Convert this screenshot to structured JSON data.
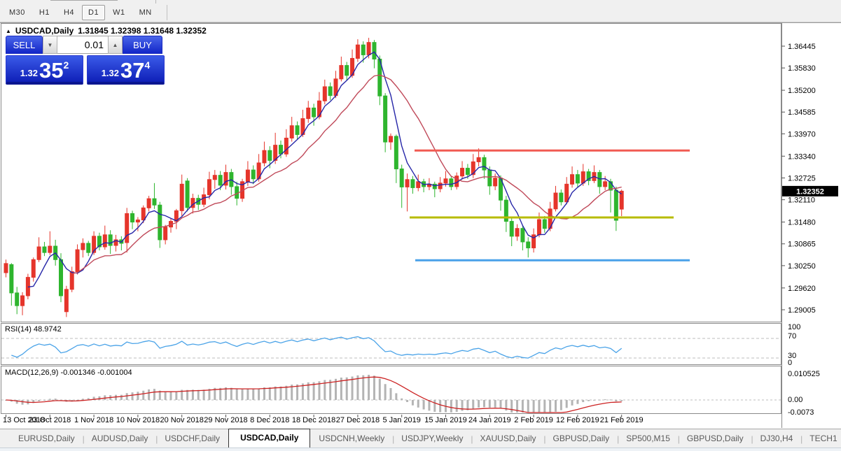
{
  "toolbar": {
    "timeframes": [
      {
        "label": "M30",
        "active": false
      },
      {
        "label": "H1",
        "active": false
      },
      {
        "label": "H4",
        "active": false
      },
      {
        "label": "D1",
        "active": true
      },
      {
        "label": "W1",
        "active": false
      },
      {
        "label": "MN",
        "active": false
      }
    ]
  },
  "chart_header": {
    "symbol": "USDCAD,Daily",
    "ohlc_text": "1.31845 1.32398 1.31648 1.32352"
  },
  "trade_panel": {
    "sell_label": "SELL",
    "buy_label": "BUY",
    "lot": "0.01",
    "sell_price": {
      "prefix": "1.32",
      "big": "35",
      "sup": "2"
    },
    "buy_price": {
      "prefix": "1.32",
      "big": "37",
      "sup": "4"
    }
  },
  "price_axis": {
    "ticks": [
      "1.36445",
      "1.35830",
      "1.35200",
      "1.34585",
      "1.33970",
      "1.33340",
      "1.32725",
      "1.32110",
      "1.31480",
      "1.30865",
      "1.30250",
      "1.29620",
      "1.29005"
    ],
    "current": "1.32352"
  },
  "rsi": {
    "title": "RSI(14) 48.9742",
    "levels": [
      "100",
      "70",
      "30",
      "0"
    ]
  },
  "macd": {
    "title": "MACD(12,26,9) -0.001346 -0.001004",
    "scale": [
      "0.010525",
      "0.00",
      "-0.0073"
    ]
  },
  "tabs": {
    "items": [
      "EURUSD,Daily",
      "AUDUSD,Daily",
      "USDCHF,Daily",
      "USDCAD,Daily",
      "USDCNH,Weekly",
      "USDJPY,Weekly",
      "XAUUSD,Daily",
      "GBPUSD,Daily",
      "SP500,M15",
      "GBPUSD,Daily",
      "DJ30,H4",
      "TECH1"
    ],
    "active_index": 3,
    "scroll_left": "◂",
    "scroll_right": "▸"
  },
  "chart_data": {
    "type": "candlestick",
    "title": "USDCAD Daily",
    "last_ohlc": {
      "open": 1.31845,
      "high": 1.32398,
      "low": 1.31648,
      "close": 1.32352
    },
    "date_labels": [
      "13 Oct 2018",
      "23 Oct 2018",
      "1 Nov 2018",
      "10 Nov 2018",
      "20 Nov 2018",
      "29 Nov 2018",
      "8 Dec 2018",
      "18 Dec 2018",
      "27 Dec 2018",
      "5 Jan 2019",
      "15 Jan 2019",
      "24 Jan 2019",
      "2 Feb 2019",
      "12 Feb 2019",
      "21 Feb 2019"
    ],
    "y_ticks": [
      1.36445,
      1.3583,
      1.352,
      1.34585,
      1.3397,
      1.3334,
      1.32725,
      1.3211,
      1.3148,
      1.30865,
      1.3025,
      1.2962,
      1.29005
    ],
    "ylim": [
      1.2869,
      1.371
    ],
    "hlines": [
      {
        "name": "resistance-line",
        "price": 1.335,
        "color": "#f15b52",
        "x1": 592,
        "x2": 985
      },
      {
        "name": "mid-support-line",
        "price": 1.3161,
        "color": "#b7bb00",
        "x1": 585,
        "x2": 962
      },
      {
        "name": "low-support-line",
        "price": 1.304,
        "color": "#49a1e9",
        "x1": 593,
        "x2": 985
      }
    ],
    "ma": [
      {
        "name": "fast-ma",
        "period": 5,
        "color": "#2626a8"
      },
      {
        "name": "slow-ma",
        "period": 13,
        "color": "#c04a5a"
      }
    ],
    "colors": {
      "up": "#e5352b",
      "down": "#2eb52e",
      "rsi_line": "#4aa3e8",
      "macd_bar": "#b4b4b4",
      "macd_signal": "#cc2222",
      "level_dash": "#bdbdbd"
    },
    "rsi_period": 14,
    "macd_params": [
      12,
      26,
      9
    ],
    "candles": [
      [
        1.3005,
        1.3042,
        1.2992,
        1.3031
      ],
      [
        1.3028,
        1.3032,
        1.2912,
        1.2948
      ],
      [
        1.2948,
        1.2965,
        1.2888,
        1.2912
      ],
      [
        1.2912,
        1.295,
        1.2885,
        1.294
      ],
      [
        1.294,
        1.3002,
        1.293,
        1.2992
      ],
      [
        1.2992,
        1.3048,
        1.298,
        1.3042
      ],
      [
        1.3042,
        1.3105,
        1.3035,
        1.3078
      ],
      [
        1.3078,
        1.3092,
        1.3052,
        1.3062
      ],
      [
        1.3062,
        1.3122,
        1.3055,
        1.308
      ],
      [
        1.308,
        1.3098,
        1.3025,
        1.3042
      ],
      [
        1.3042,
        1.306,
        1.2922,
        1.294
      ],
      [
        1.2895,
        1.2968,
        1.288,
        1.2958
      ],
      [
        1.2958,
        1.3022,
        1.295,
        1.3008
      ],
      [
        1.3008,
        1.3085,
        1.3,
        1.307
      ],
      [
        1.307,
        1.3102,
        1.3048,
        1.3088
      ],
      [
        1.3088,
        1.3095,
        1.3052,
        1.3062
      ],
      [
        1.3062,
        1.3122,
        1.3055,
        1.3108
      ],
      [
        1.3108,
        1.3118,
        1.3068,
        1.3078
      ],
      [
        1.3078,
        1.3138,
        1.307,
        1.3112
      ],
      [
        1.3112,
        1.3125,
        1.3058,
        1.3082
      ],
      [
        1.3082,
        1.3112,
        1.3065,
        1.3098
      ],
      [
        1.3098,
        1.3108,
        1.3068,
        1.3088
      ],
      [
        1.309,
        1.3188,
        1.3062,
        1.3172
      ],
      [
        1.3172,
        1.318,
        1.3128,
        1.3148
      ],
      [
        1.3148,
        1.3162,
        1.3122,
        1.3154
      ],
      [
        1.3154,
        1.3195,
        1.3145,
        1.3188
      ],
      [
        1.3188,
        1.3222,
        1.3178,
        1.3214
      ],
      [
        1.3214,
        1.3258,
        1.3185,
        1.3196
      ],
      [
        1.3196,
        1.3205,
        1.3075,
        1.3098
      ],
      [
        1.3098,
        1.314,
        1.3085,
        1.3134
      ],
      [
        1.3134,
        1.3158,
        1.3118,
        1.315
      ],
      [
        1.315,
        1.3185,
        1.3128,
        1.318
      ],
      [
        1.318,
        1.3282,
        1.3165,
        1.3255
      ],
      [
        1.3264,
        1.3272,
        1.3178,
        1.3189
      ],
      [
        1.3189,
        1.3228,
        1.3172,
        1.3215
      ],
      [
        1.3215,
        1.3225,
        1.3182,
        1.3198
      ],
      [
        1.3198,
        1.3245,
        1.319,
        1.3225
      ],
      [
        1.3225,
        1.329,
        1.3212,
        1.3268
      ],
      [
        1.3268,
        1.3295,
        1.3242,
        1.328
      ],
      [
        1.328,
        1.3292,
        1.3238,
        1.3252
      ],
      [
        1.3252,
        1.331,
        1.324,
        1.3288
      ],
      [
        1.3288,
        1.3298,
        1.3225,
        1.3248
      ],
      [
        1.3248,
        1.3262,
        1.3195,
        1.3215
      ],
      [
        1.3215,
        1.327,
        1.3205,
        1.3262
      ],
      [
        1.3262,
        1.332,
        1.325,
        1.3295
      ],
      [
        1.3295,
        1.3308,
        1.3255,
        1.327
      ],
      [
        1.327,
        1.334,
        1.3262,
        1.3315
      ],
      [
        1.3315,
        1.3375,
        1.3305,
        1.335
      ],
      [
        1.335,
        1.3362,
        1.33,
        1.3322
      ],
      [
        1.3322,
        1.34,
        1.3312,
        1.3365
      ],
      [
        1.3365,
        1.3378,
        1.3328,
        1.334
      ],
      [
        1.334,
        1.341,
        1.3332,
        1.3385
      ],
      [
        1.3385,
        1.3445,
        1.3375,
        1.342
      ],
      [
        1.342,
        1.3432,
        1.3382,
        1.3395
      ],
      [
        1.3395,
        1.3465,
        1.3388,
        1.344
      ],
      [
        1.344,
        1.349,
        1.3428,
        1.347
      ],
      [
        1.347,
        1.3482,
        1.342,
        1.3445
      ],
      [
        1.3445,
        1.3515,
        1.3438,
        1.349
      ],
      [
        1.349,
        1.355,
        1.348,
        1.353
      ],
      [
        1.353,
        1.3542,
        1.3492,
        1.3505
      ],
      [
        1.3505,
        1.3575,
        1.3498,
        1.3552
      ],
      [
        1.3552,
        1.3615,
        1.3545,
        1.359
      ],
      [
        1.359,
        1.36,
        1.3548,
        1.3562
      ],
      [
        1.3562,
        1.3635,
        1.3555,
        1.361
      ],
      [
        1.361,
        1.3664,
        1.36,
        1.3648
      ],
      [
        1.3648,
        1.3658,
        1.3598,
        1.362
      ],
      [
        1.362,
        1.3668,
        1.361,
        1.3655
      ],
      [
        1.3655,
        1.3662,
        1.3582,
        1.3608
      ],
      [
        1.3608,
        1.3618,
        1.3478,
        1.3504
      ],
      [
        1.3504,
        1.3512,
        1.3345,
        1.3374
      ],
      [
        1.3374,
        1.3398,
        1.3352,
        1.339
      ],
      [
        1.339,
        1.3395,
        1.3258,
        1.3298
      ],
      [
        1.3298,
        1.331,
        1.3188,
        1.3247
      ],
      [
        1.3247,
        1.3285,
        1.3178,
        1.3268
      ],
      [
        1.3268,
        1.3278,
        1.3228,
        1.3245
      ],
      [
        1.3245,
        1.3282,
        1.3235,
        1.3262
      ],
      [
        1.3262,
        1.327,
        1.3232,
        1.3248
      ],
      [
        1.3248,
        1.3272,
        1.3238,
        1.3255
      ],
      [
        1.3255,
        1.3262,
        1.3218,
        1.3242
      ],
      [
        1.3242,
        1.3275,
        1.3232,
        1.3258
      ],
      [
        1.3258,
        1.3292,
        1.3248,
        1.327
      ],
      [
        1.327,
        1.3278,
        1.3238,
        1.3248
      ],
      [
        1.3248,
        1.3288,
        1.324,
        1.3278
      ],
      [
        1.3278,
        1.332,
        1.3268,
        1.33
      ],
      [
        1.33,
        1.3312,
        1.327,
        1.3282
      ],
      [
        1.3282,
        1.334,
        1.3272,
        1.3318
      ],
      [
        1.3318,
        1.3356,
        1.3305,
        1.333
      ],
      [
        1.333,
        1.3338,
        1.327,
        1.3295
      ],
      [
        1.3295,
        1.3305,
        1.3225,
        1.325
      ],
      [
        1.325,
        1.3285,
        1.3238,
        1.3272
      ],
      [
        1.3272,
        1.328,
        1.318,
        1.321
      ],
      [
        1.321,
        1.3222,
        1.312,
        1.315
      ],
      [
        1.315,
        1.3162,
        1.308,
        1.3108
      ],
      [
        1.3108,
        1.3142,
        1.3095,
        1.313
      ],
      [
        1.313,
        1.3138,
        1.3068,
        1.3092
      ],
      [
        1.3092,
        1.3105,
        1.3048,
        1.3075
      ],
      [
        1.3075,
        1.313,
        1.3062,
        1.3112
      ],
      [
        1.3112,
        1.3175,
        1.3105,
        1.3155
      ],
      [
        1.3155,
        1.3165,
        1.3118,
        1.313
      ],
      [
        1.313,
        1.3205,
        1.3122,
        1.3185
      ],
      [
        1.3185,
        1.325,
        1.3178,
        1.323
      ],
      [
        1.323,
        1.324,
        1.3195,
        1.3205
      ],
      [
        1.3205,
        1.3275,
        1.3198,
        1.3255
      ],
      [
        1.3255,
        1.3305,
        1.3245,
        1.3282
      ],
      [
        1.3282,
        1.3295,
        1.3245,
        1.3258
      ],
      [
        1.3258,
        1.3312,
        1.325,
        1.329
      ],
      [
        1.329,
        1.3298,
        1.3252,
        1.3265
      ],
      [
        1.3265,
        1.3308,
        1.3258,
        1.3288
      ],
      [
        1.3288,
        1.3295,
        1.3228,
        1.3248
      ],
      [
        1.3248,
        1.3278,
        1.3238,
        1.3262
      ],
      [
        1.3262,
        1.327,
        1.3175,
        1.3238
      ],
      [
        1.3238,
        1.3248,
        1.3123,
        1.3153
      ],
      [
        1.31845,
        1.32398,
        1.31648,
        1.32352
      ]
    ]
  }
}
